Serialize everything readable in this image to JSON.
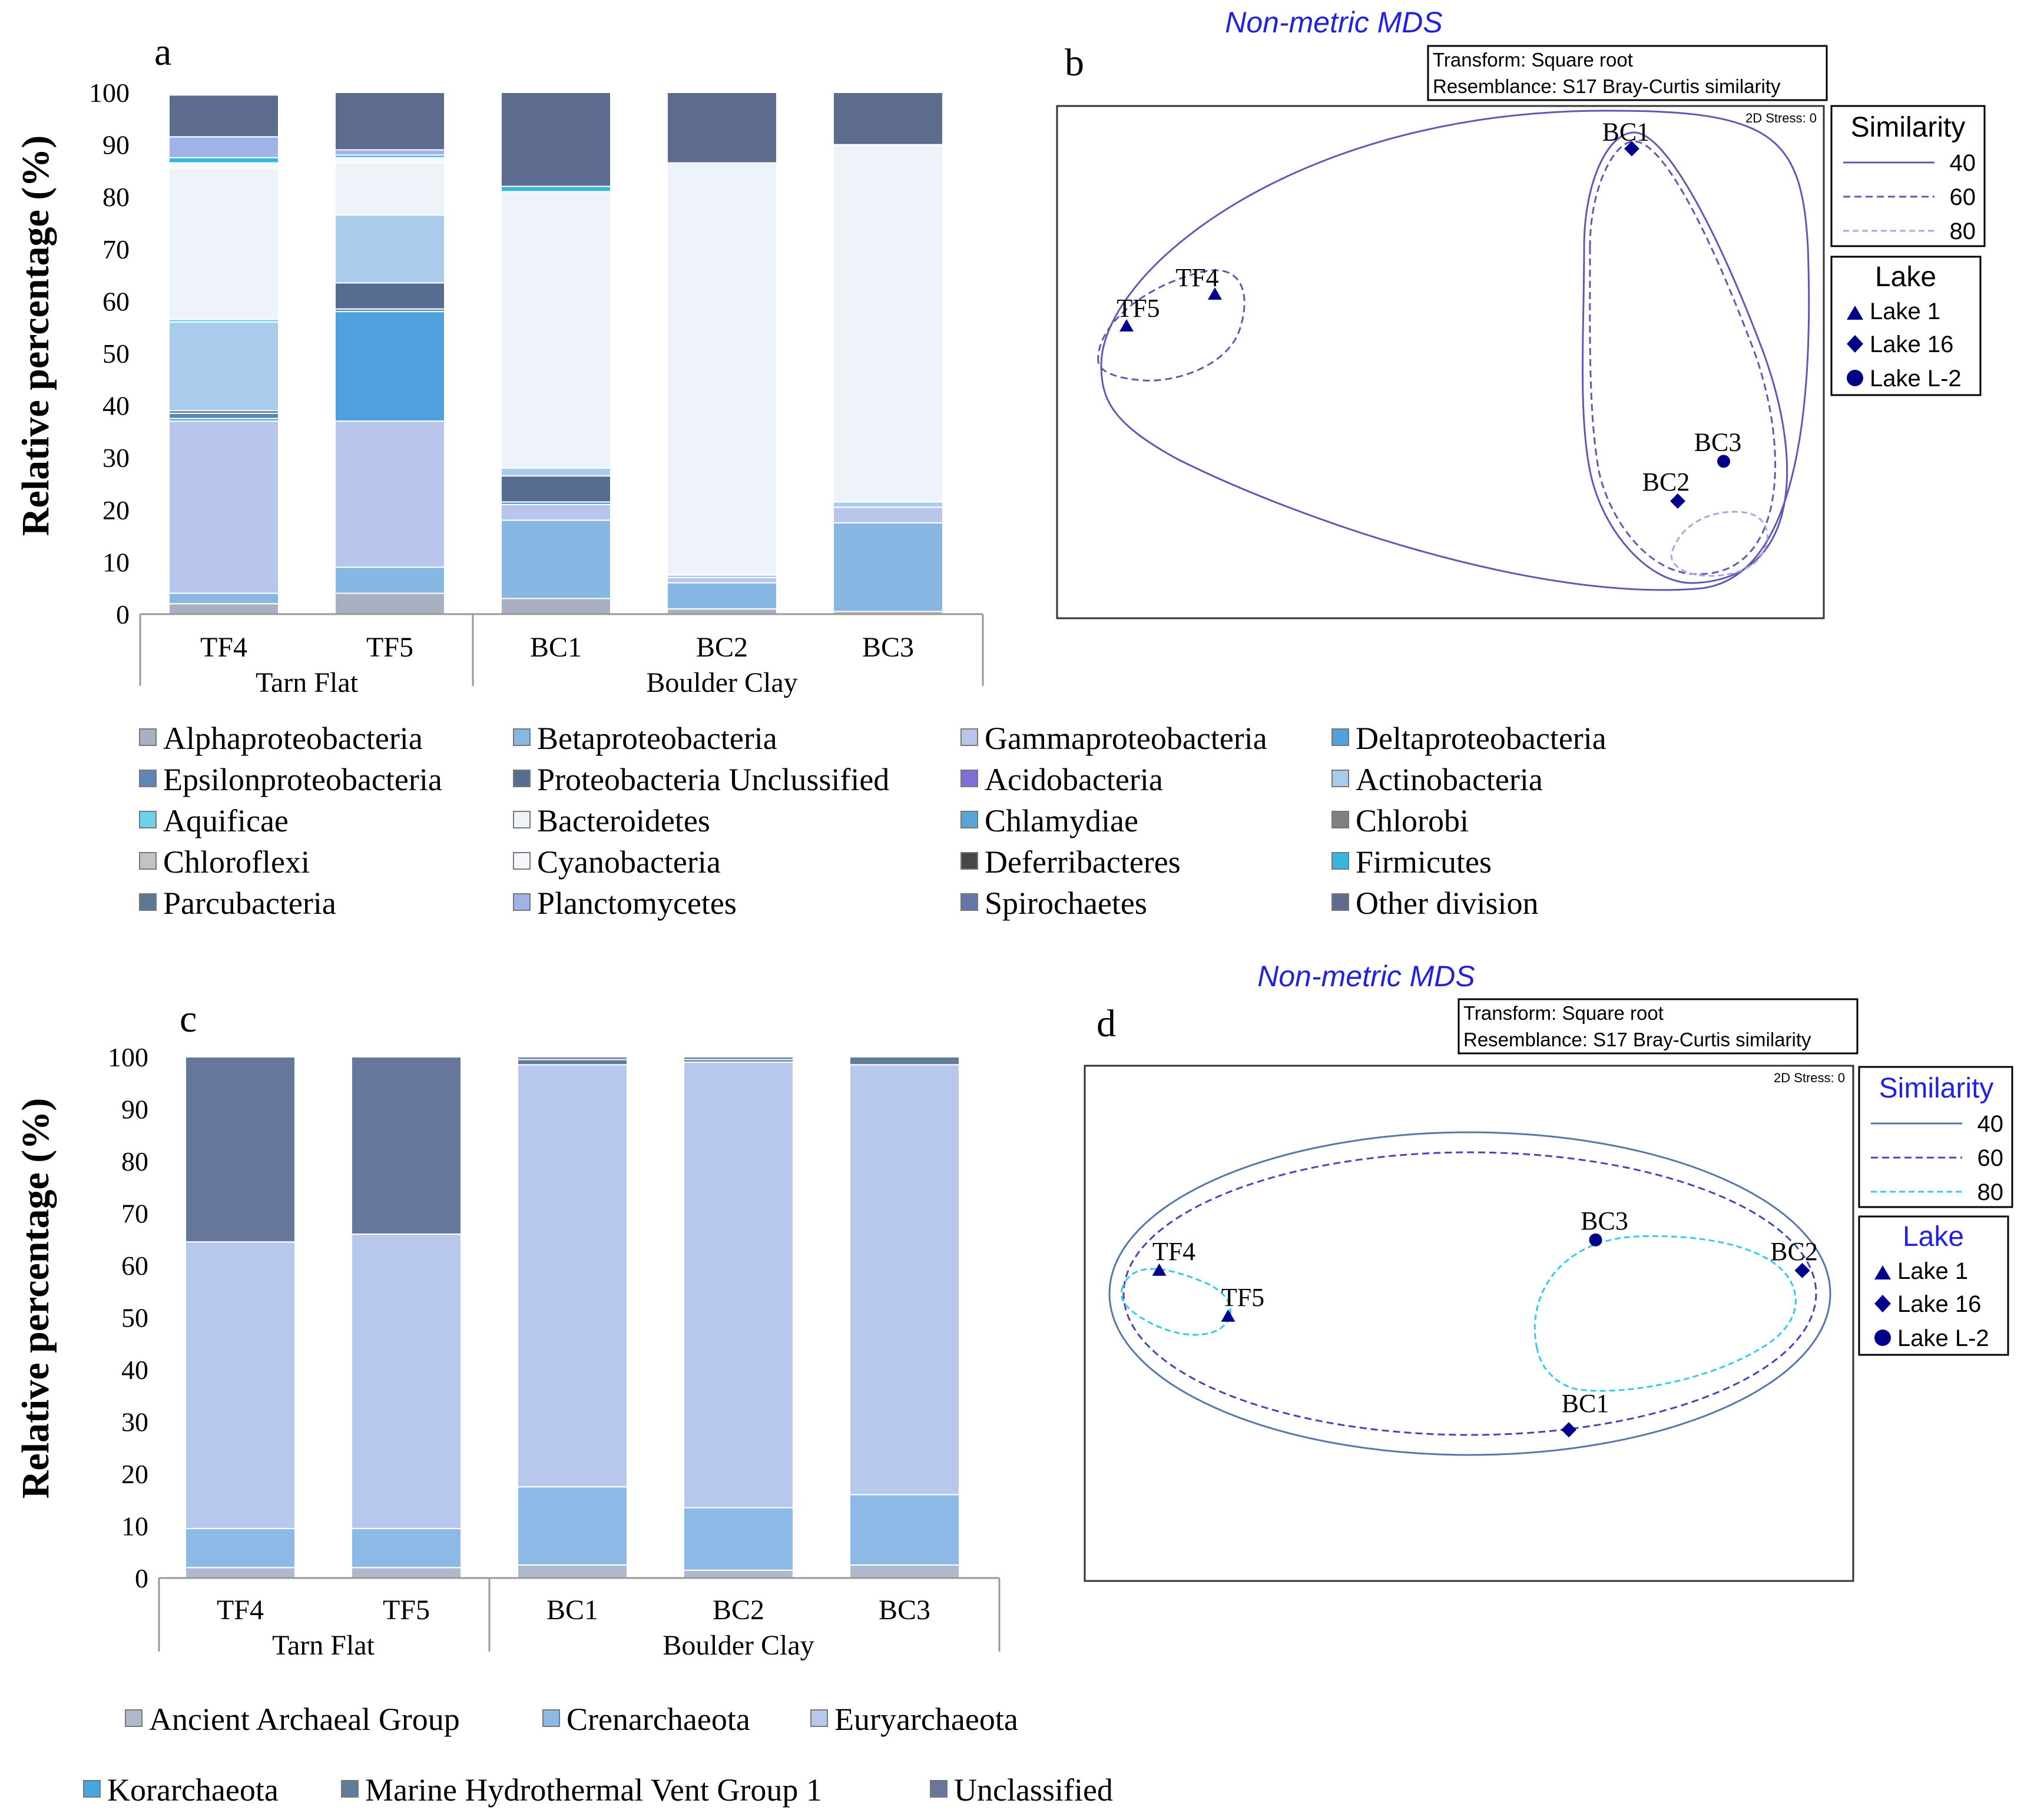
{
  "colors": {
    "Alphaproteobacteria": "#a9b0c2",
    "Betaproteobacteria": "#86b8e3",
    "Gammaproteobacteria": "#b8c6ec",
    "Deltaproteobacteria": "#4fa0dc",
    "Epsilonproteobacteria": "#5d86b7",
    "Proteobacteria Unclussified": "#566d91",
    "Acidobacteria": "#7d6ed8",
    "Actinobacteria": "#a9cbec",
    "Aquificae": "#6ed3ea",
    "Bacteroidetes": "#eef3f9",
    "Chlamydiae": "#58a5d6",
    "Chlorobi": "#808080",
    "Chloroflexi": "#c3c3c3",
    "Cyanobacteria": "#f4f7fb",
    "Deferribacteres": "#474747",
    "Firmicutes": "#35b6dd",
    "Parcubacteria": "#5a7892",
    "Planctomycetes": "#9fb3e8",
    "Spirochaetes": "#6476a9",
    "Other division": "#5d6b8f",
    "Ancient Archaeal Group": "#b0b8cc",
    "Crenarchaeota": "#8cb9e6",
    "Euryarchaeota": "#b8c7ec",
    "Korarchaeota": "#44a8dd",
    "Marine Hydrothermal Vent Group 1": "#5f7d9b",
    "Unclassified": "#66779b",
    "ordination": "#00008b",
    "mds_title": "#2222dd"
  },
  "chart_data": [
    {
      "panel": "a",
      "type": "bar",
      "stacked": true,
      "ylabel": "Relative percentage (%)",
      "ylim": [
        0,
        100
      ],
      "yticks": [
        "0",
        "10",
        "20",
        "30",
        "40",
        "50",
        "60",
        "70",
        "80",
        "90",
        "100"
      ],
      "categories": [
        "TF4",
        "TF5",
        "BC1",
        "BC2",
        "BC3"
      ],
      "groups": [
        {
          "name": "Tarn Flat",
          "members": [
            "TF4",
            "TF5"
          ]
        },
        {
          "name": "Boulder Clay",
          "members": [
            "BC1",
            "BC2",
            "BC3"
          ]
        }
      ],
      "series": [
        {
          "name": "Alphaproteobacteria",
          "values": [
            2,
            4,
            3,
            1,
            0.5
          ]
        },
        {
          "name": "Betaproteobacteria",
          "values": [
            2,
            5,
            15,
            5,
            17
          ]
        },
        {
          "name": "Gammaproteobacteria",
          "values": [
            33,
            28,
            3,
            1,
            3
          ]
        },
        {
          "name": "Deltaproteobacteria",
          "values": [
            0.5,
            21,
            0.5,
            0,
            0
          ]
        },
        {
          "name": "Epsilonproteobacteria",
          "values": [
            1,
            0.5,
            0,
            0,
            0
          ]
        },
        {
          "name": "Proteobacteria Unclussified",
          "values": [
            0.5,
            5,
            5,
            0,
            0
          ]
        },
        {
          "name": "Acidobacteria",
          "values": [
            0,
            0,
            0,
            0,
            0
          ]
        },
        {
          "name": "Actinobacteria",
          "values": [
            17,
            13,
            1.5,
            0.5,
            1
          ]
        },
        {
          "name": "Aquificae",
          "values": [
            0.5,
            0,
            0,
            0,
            0
          ]
        },
        {
          "name": "Bacteroidetes",
          "values": [
            29,
            10,
            53,
            79,
            68.5
          ]
        },
        {
          "name": "Chlamydiae",
          "values": [
            0,
            0,
            0,
            0,
            0
          ]
        },
        {
          "name": "Chlorobi",
          "values": [
            0,
            0,
            0,
            0,
            0
          ]
        },
        {
          "name": "Chloroflexi",
          "values": [
            0,
            0,
            0,
            0,
            0
          ]
        },
        {
          "name": "Cyanobacteria",
          "values": [
            1,
            1,
            0,
            0,
            0
          ]
        },
        {
          "name": "Deferribacteres",
          "values": [
            0,
            0,
            0,
            0,
            0
          ]
        },
        {
          "name": "Firmicutes",
          "values": [
            1,
            0.5,
            1,
            0,
            0
          ]
        },
        {
          "name": "Parcubacteria",
          "values": [
            0,
            0,
            0,
            0,
            0
          ]
        },
        {
          "name": "Planctomycetes",
          "values": [
            4,
            1,
            0,
            0,
            0
          ]
        },
        {
          "name": "Spirochaetes",
          "values": [
            0,
            0,
            0,
            0,
            0
          ]
        },
        {
          "name": "Other division",
          "values": [
            8,
            11,
            18,
            13.5,
            10
          ]
        }
      ]
    },
    {
      "panel": "b",
      "type": "scatter",
      "title": "Non-metric MDS",
      "info": [
        "Transform: Square root",
        "Resemblance: S17 Bray-Curtis similarity"
      ],
      "stress": "2D Stress: 0",
      "points": [
        {
          "label": "BC1",
          "x": 0.66,
          "y": 0.93,
          "lake": "Lake 16"
        },
        {
          "label": "TF4",
          "x": -0.52,
          "y": 0.38,
          "lake": "Lake 1"
        },
        {
          "label": "TF5",
          "x": -0.77,
          "y": 0.26,
          "lake": "Lake 1"
        },
        {
          "label": "BC3",
          "x": 0.92,
          "y": -0.25,
          "lake": "Lake L-2"
        },
        {
          "label": "BC2",
          "x": 0.79,
          "y": -0.4,
          "lake": "Lake 16"
        }
      ],
      "similarity_legend": {
        "title": "Similarity",
        "levels": [
          "40",
          "60",
          "80"
        ]
      },
      "lake_legend": {
        "title": "Lake",
        "entries": [
          "Lake 1",
          "Lake 16",
          "Lake L-2"
        ]
      }
    },
    {
      "panel": "c",
      "type": "bar",
      "stacked": true,
      "ylabel": "Relative percentage (%)",
      "ylim": [
        0,
        100
      ],
      "yticks": [
        "0",
        "10",
        "20",
        "30",
        "40",
        "50",
        "60",
        "70",
        "80",
        "90",
        "100"
      ],
      "categories": [
        "TF4",
        "TF5",
        "BC1",
        "BC2",
        "BC3"
      ],
      "groups": [
        {
          "name": "Tarn Flat",
          "members": [
            "TF4",
            "TF5"
          ]
        },
        {
          "name": "Boulder Clay",
          "members": [
            "BC1",
            "BC2",
            "BC3"
          ]
        }
      ],
      "series": [
        {
          "name": "Ancient Archaeal Group",
          "values": [
            2,
            2,
            2.5,
            1.5,
            2.5
          ]
        },
        {
          "name": "Crenarchaeota",
          "values": [
            7.5,
            7.5,
            15,
            12,
            13.5
          ]
        },
        {
          "name": "Euryarchaeota",
          "values": [
            55,
            56.5,
            81,
            85.5,
            82.5
          ]
        },
        {
          "name": "Korarchaeota",
          "values": [
            0,
            0,
            0,
            0,
            0
          ]
        },
        {
          "name": "Marine Hydrothermal Vent Group 1",
          "values": [
            0,
            0,
            1,
            0.5,
            1.5
          ]
        },
        {
          "name": "Unclassified",
          "values": [
            35.5,
            34,
            0.5,
            0.5,
            0
          ]
        }
      ]
    },
    {
      "panel": "d",
      "type": "scatter",
      "title": "Non-metric MDS",
      "info": [
        "Transform: Square root",
        "Resemblance: S17 Bray-Curtis similarity"
      ],
      "stress": "2D Stress: 0",
      "points": [
        {
          "label": "TF4",
          "x": -0.95,
          "y": 0.16,
          "lake": "Lake 1"
        },
        {
          "label": "TF5",
          "x": -0.77,
          "y": 0.01,
          "lake": "Lake 1"
        },
        {
          "label": "BC3",
          "x": 0.19,
          "y": 0.26,
          "lake": "Lake L-2"
        },
        {
          "label": "BC2",
          "x": 0.73,
          "y": 0.16,
          "lake": "Lake 16"
        },
        {
          "label": "BC1",
          "x": 0.12,
          "y": -0.36,
          "lake": "Lake 16"
        }
      ],
      "similarity_legend": {
        "title": "Similarity",
        "levels": [
          "40",
          "60",
          "80"
        ]
      },
      "lake_legend": {
        "title": "Lake",
        "entries": [
          "Lake 1",
          "Lake 16",
          "Lake L-2"
        ]
      }
    }
  ],
  "panel_labels": {
    "a": "a",
    "b": "b",
    "c": "c",
    "d": "d"
  }
}
